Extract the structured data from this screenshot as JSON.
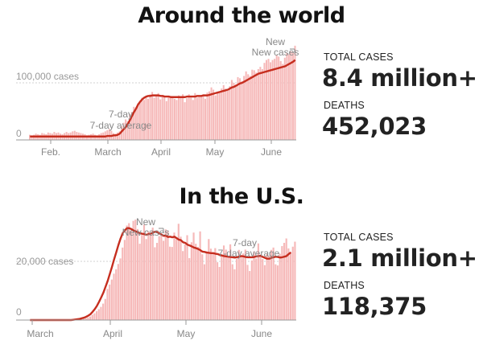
{
  "chart_data": [
    {
      "type": "bar",
      "title": "Around the world",
      "series": [
        {
          "name": "New cases",
          "values": [
            9,
            8,
            9,
            11,
            10,
            9,
            12,
            11,
            10,
            13,
            12,
            11,
            14,
            12,
            13,
            11,
            10,
            12,
            14,
            12,
            13,
            15,
            16,
            14,
            13,
            12,
            11,
            10,
            8,
            9,
            10,
            11,
            9,
            8,
            10,
            12,
            13,
            15,
            17,
            19,
            16,
            12,
            11,
            13,
            15,
            24,
            30,
            36,
            33,
            45,
            49,
            58,
            56,
            64,
            68,
            74,
            70,
            76,
            72,
            80,
            84,
            74,
            78,
            82,
            71,
            76,
            75,
            68,
            74,
            77,
            75,
            72,
            70,
            78,
            76,
            80,
            66,
            73,
            80,
            74,
            70,
            82,
            74,
            77,
            78,
            80,
            72,
            83,
            85,
            92,
            88,
            78,
            82,
            84,
            90,
            96,
            90,
            86,
            94,
            105,
            100,
            97,
            110,
            108,
            103,
            112,
            120,
            115,
            112,
            123,
            122,
            118,
            124,
            128,
            124,
            135,
            140,
            142,
            136,
            140,
            142,
            148,
            146,
            138,
            133,
            144,
            152,
            150,
            155,
            154,
            165
          ]
        },
        {
          "name": "7-day average",
          "values": [
            6,
            6,
            6,
            6,
            6,
            6,
            6,
            6,
            6,
            6,
            6,
            6,
            6,
            6,
            6,
            6,
            6,
            6,
            6,
            6,
            6,
            6,
            6,
            6,
            6,
            6,
            6,
            6,
            6,
            6,
            6,
            6,
            6,
            6,
            6,
            6,
            6,
            6,
            7,
            7,
            7,
            8,
            8,
            9,
            11,
            15,
            19,
            23,
            28,
            35,
            42,
            49,
            55,
            62,
            67,
            71,
            74,
            76,
            77,
            77,
            78,
            78,
            78,
            78,
            77,
            77,
            76,
            76,
            76,
            75,
            75,
            75,
            75,
            75,
            75,
            75,
            75,
            76,
            76,
            76,
            76,
            76,
            77,
            77,
            77,
            78,
            78,
            78,
            79,
            80,
            81,
            82,
            83,
            84,
            85,
            86,
            87,
            88,
            90,
            92,
            93,
            95,
            97,
            99,
            100,
            102,
            104,
            106,
            108,
            110,
            112,
            114,
            116,
            117,
            118,
            119,
            120,
            121,
            122,
            123,
            124,
            125,
            126,
            127,
            128,
            129,
            131,
            133,
            135,
            137,
            140
          ]
        }
      ],
      "y_tick_labels": [
        "100,000 cases",
        "0"
      ],
      "y_ticks": [
        100000,
        0
      ],
      "x_tick_labels": [
        "Feb.",
        "March",
        "April",
        "May",
        "June"
      ],
      "annotations": [
        "7-day average",
        "New cases"
      ],
      "totals": {
        "total_cases_label": "TOTAL CASES",
        "total_cases": "8.4 million+",
        "deaths_label": "DEATHS",
        "deaths": "452,023"
      }
    },
    {
      "type": "bar",
      "title": "In the U.S.",
      "series": [
        {
          "name": "New cases",
          "values": [
            0,
            0,
            0,
            0,
            0,
            0,
            0,
            0,
            0,
            0,
            0,
            0,
            0,
            0,
            0,
            0,
            0,
            0,
            0,
            0,
            0,
            0,
            0.1,
            0.2,
            0.3,
            0.4,
            0.6,
            0.9,
            1.2,
            1.8,
            2.3,
            3,
            3.7,
            4.5,
            5.6,
            7.2,
            10.6,
            12.1,
            13.8,
            15.8,
            17.3,
            19.1,
            21,
            24.7,
            27.3,
            32.2,
            33,
            30.5,
            33.8,
            34.2,
            31,
            26,
            29,
            32.5,
            27.6,
            30.2,
            29.9,
            31.5,
            24.8,
            26.3,
            28.6,
            29.2,
            27,
            30.9,
            30.5,
            25,
            24.9,
            29.8,
            27.5,
            32.8,
            28.4,
            23.5,
            25.8,
            28.9,
            21.1,
            26.5,
            29.8,
            26,
            24.9,
            30.2,
            22.4,
            19,
            23.4,
            27.6,
            24.3,
            23.1,
            24.5,
            19.7,
            18.1,
            22.1,
            25.4,
            24,
            21.5,
            25.8,
            19,
            17.3,
            20.8,
            23.9,
            21.9,
            22.7,
            24,
            18.8,
            16.7,
            20.3,
            23.4,
            21,
            26.1,
            22.3,
            20.8,
            18.7,
            22.5,
            21.9,
            23.9,
            24.7,
            19,
            18.6,
            22.6,
            25.2,
            26.3,
            27.8,
            24.4,
            23.3,
            25,
            26.7
          ]
        },
        {
          "name": "7-day average",
          "values": [
            0,
            0,
            0,
            0,
            0,
            0,
            0,
            0,
            0,
            0,
            0,
            0,
            0,
            0,
            0,
            0,
            0,
            0,
            0,
            0,
            0.1,
            0.2,
            0.3,
            0.4,
            0.6,
            0.8,
            1.1,
            1.5,
            2,
            2.8,
            3.7,
            4.8,
            6.2,
            7.7,
            9.3,
            11.3,
            13.3,
            15.7,
            18.1,
            20.7,
            23.1,
            25.6,
            27.8,
            29.6,
            30.6,
            31.3,
            31.3,
            31,
            30.5,
            30.2,
            29.9,
            29.6,
            29.4,
            29.3,
            29,
            29.3,
            29.5,
            29.8,
            30.1,
            29.9,
            29.5,
            29.1,
            28.7,
            28.8,
            28.3,
            28.4,
            28.2,
            28.4,
            27.9,
            27.4,
            27.2,
            26.5,
            26.3,
            25.7,
            25.4,
            25.1,
            24.7,
            24.5,
            24.2,
            23.8,
            23.3,
            23.2,
            23,
            22.9,
            22.8,
            22.8,
            22.6,
            22.5,
            22.2,
            22,
            21.8,
            21.7,
            21.6,
            21.5,
            21.4,
            21.3,
            21.4,
            21.6,
            21.8,
            21.7,
            21.5,
            21.4,
            21.4,
            21.4,
            21.5,
            21.7,
            21.8,
            21.9,
            21.5,
            21.2,
            20.9,
            20.9,
            21.2,
            21.4,
            21.6,
            21.5,
            21.3,
            21.4,
            21.6,
            21.8,
            22.5,
            23
          ]
        }
      ],
      "y_tick_labels": [
        "20,000 cases",
        "0"
      ],
      "y_ticks": [
        20000,
        0
      ],
      "x_tick_labels": [
        "March",
        "April",
        "May",
        "June"
      ],
      "annotations": [
        "New cases",
        "7-day average"
      ],
      "totals": {
        "total_cases_label": "TOTAL CASES",
        "total_cases": "2.1 million+",
        "deaths_label": "DEATHS",
        "deaths": "118,375"
      }
    }
  ],
  "colors": {
    "bar": "#f6b9b9",
    "line": "#c62e1f",
    "gridline": "#d0d0d0",
    "axis": "#999999"
  }
}
